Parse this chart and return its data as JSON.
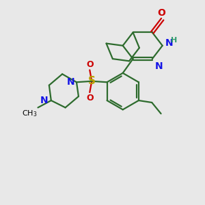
{
  "bg_color": "#e8e8e8",
  "bond_color": "#2d6b2d",
  "bond_lw": 1.6,
  "N_color": "#1414e6",
  "O_color": "#cc0000",
  "S_color": "#b8a000",
  "H_color": "#2d9b6b",
  "font_size": 10,
  "small_font": 8,
  "figsize": [
    3.0,
    3.0
  ],
  "dpi": 100,
  "xlim": [
    0,
    10
  ],
  "ylim": [
    0,
    10
  ]
}
